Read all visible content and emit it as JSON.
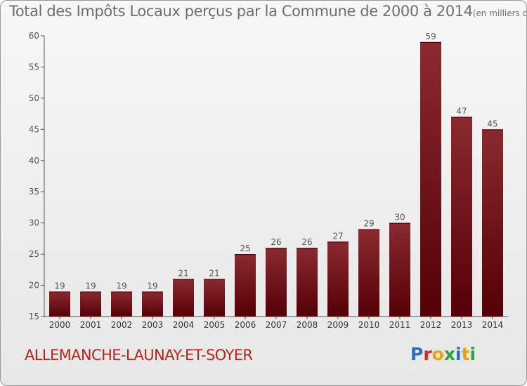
{
  "header": {
    "title": "Total des Impôts Locaux perçus par la Commune de 2000 à 2014",
    "unit": "(en milliers d'€)"
  },
  "chart_data": {
    "type": "bar",
    "categories": [
      "2000",
      "2001",
      "2002",
      "2003",
      "2004",
      "2005",
      "2006",
      "2007",
      "2008",
      "2009",
      "2010",
      "2011",
      "2012",
      "2013",
      "2014"
    ],
    "values": [
      19,
      19,
      19,
      19,
      21,
      21,
      25,
      26,
      26,
      27,
      29,
      30,
      59,
      47,
      45
    ],
    "ylim": [
      15,
      60
    ],
    "yticks": [
      15,
      20,
      25,
      30,
      35,
      40,
      45,
      50,
      55,
      60
    ],
    "grid": false,
    "data_labels": true,
    "bar_color": "#7a1a1e"
  },
  "footer": {
    "commune": "ALLEMANCHE-LAUNAY-ET-SOYER",
    "logo_letters": [
      "P",
      "r",
      "o",
      "x",
      "i",
      "t",
      "i"
    ],
    "logo_colors": [
      "#2c6fb7",
      "#d42a2a",
      "#e7a21a",
      "#2f9e44",
      "#2c6fb7",
      "#e7a21a",
      "#2f9e44"
    ]
  }
}
